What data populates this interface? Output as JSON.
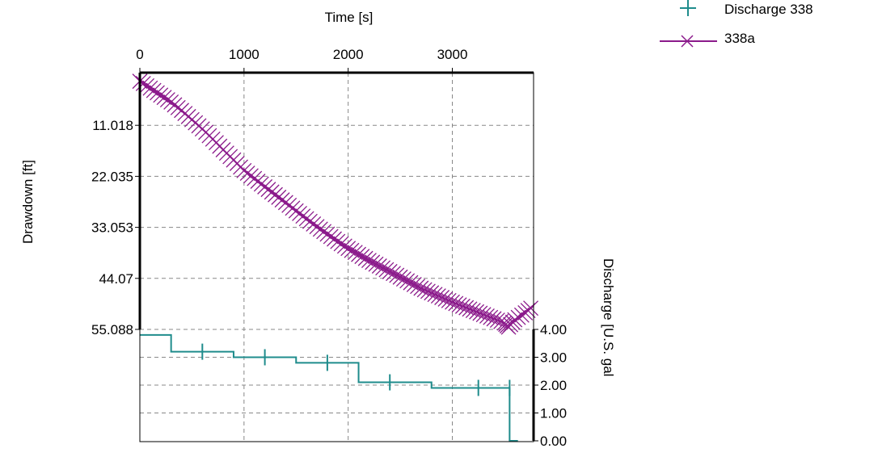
{
  "chart_data": {
    "type": "line",
    "xlabel": "Time [s]",
    "ylabel": "Drawdown [ft]",
    "y2label": "Discharge  [U.S. gal",
    "xlim": [
      0,
      3780
    ],
    "ylim": [
      0,
      55.088
    ],
    "y2lim": [
      0,
      4
    ],
    "x_ticks": [
      "0",
      "1000",
      "2000",
      "3000"
    ],
    "y_ticks": [
      "11.018",
      "22.035",
      "33.053",
      "44.07",
      "55.088"
    ],
    "y2_ticks": [
      "4.00",
      "3.00",
      "2.00",
      "1.00",
      "0.00"
    ],
    "grid": true,
    "legend_position": "top-right",
    "legend": [
      {
        "label": "Discharge  338",
        "marker": "plus",
        "color": "#1f8c8c"
      },
      {
        "label": "338a",
        "marker": "x-line",
        "color": "#8b1a8b"
      }
    ],
    "series": [
      {
        "name": "338a",
        "axis": "drawdown",
        "color": "#8b1a8b",
        "x": [
          0,
          100,
          200,
          300,
          400,
          500,
          600,
          700,
          800,
          900,
          1000,
          1100,
          1200,
          1300,
          1400,
          1500,
          1600,
          1700,
          1800,
          1900,
          2000,
          2100,
          2200,
          2300,
          2400,
          2500,
          2600,
          2700,
          2800,
          2900,
          3000,
          3100,
          3200,
          3300,
          3400,
          3500,
          3540,
          3600,
          3700,
          3780
        ],
        "y": [
          1.5,
          3.0,
          4.5,
          6.0,
          7.8,
          9.8,
          11.8,
          14.0,
          16.3,
          18.5,
          20.8,
          22.5,
          24.3,
          26.0,
          27.7,
          29.5,
          31.2,
          32.9,
          34.5,
          36.1,
          37.6,
          38.9,
          40.2,
          41.4,
          42.6,
          43.8,
          45.0,
          46.2,
          47.2,
          48.2,
          49.2,
          50.1,
          51.0,
          51.9,
          52.8,
          53.7,
          54.6,
          53.0,
          51.5,
          50.0
        ]
      },
      {
        "name": "Discharge  338",
        "axis": "discharge",
        "color": "#1f8c8c",
        "step": true,
        "x": [
          0,
          300,
          900,
          1500,
          2100,
          2800,
          3550,
          3550,
          3630
        ],
        "y": [
          3.8,
          3.2,
          3.0,
          2.8,
          2.1,
          1.9,
          1.9,
          0,
          0
        ],
        "markers_x": [
          600,
          1200,
          1800,
          2400,
          3250,
          3550
        ]
      }
    ]
  }
}
